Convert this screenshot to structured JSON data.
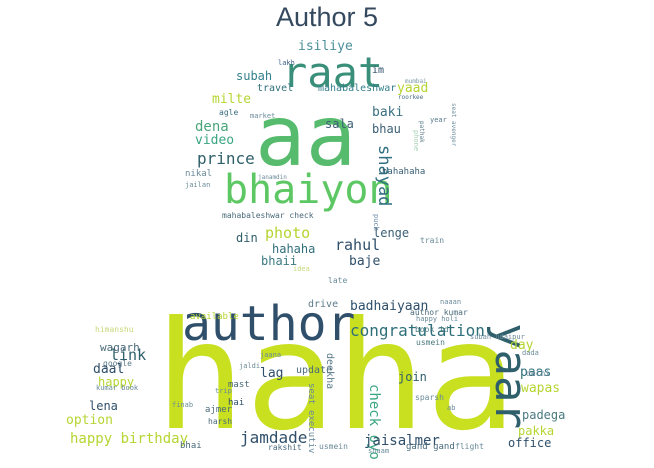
{
  "title": "Author 5",
  "clouds": [
    {
      "name": "upper-cloud",
      "words": [
        {
          "text": "aa",
          "color": "#56bb6c"
        },
        {
          "text": "raat",
          "color": "#3a8f7a"
        },
        {
          "text": "bhaiyon",
          "color": "#5dc863"
        },
        {
          "text": "isiliye",
          "color": "#4a8f9a"
        },
        {
          "text": "lakh",
          "color": "#3c5f8a"
        },
        {
          "text": "im",
          "color": "#2f4f6a"
        },
        {
          "text": "mumbai",
          "color": "#7a9aa8"
        },
        {
          "text": "subah",
          "color": "#35808d"
        },
        {
          "text": "travel",
          "color": "#2f6f7a"
        },
        {
          "text": "mahabaleshwar",
          "color": "#35808d"
        },
        {
          "text": "yaad",
          "color": "#b5d532"
        },
        {
          "text": "roorkee",
          "color": "#4a6f8a"
        },
        {
          "text": "milte",
          "color": "#b5d532"
        },
        {
          "text": "baki",
          "color": "#3a6f80"
        },
        {
          "text": "agle",
          "color": "#3a6f80"
        },
        {
          "text": "market",
          "color": "#6a8a9a"
        },
        {
          "text": "year",
          "color": "#5a7a8a"
        },
        {
          "text": "sala",
          "color": "#3a5f75"
        },
        {
          "text": "bhau",
          "color": "#3a5f75"
        },
        {
          "text": "dena",
          "color": "#4aa57a"
        },
        {
          "text": "video",
          "color": "#3aa580"
        },
        {
          "text": "pathak",
          "color": "#5a7a8a"
        },
        {
          "text": "seat avenger",
          "color": "#6a8a9a"
        },
        {
          "text": "prince",
          "color": "#2f5f6a"
        },
        {
          "text": "shayad",
          "color": "#2f6f80"
        },
        {
          "text": "phone",
          "color": "#a8cfb8"
        },
        {
          "text": "nikal",
          "color": "#6a8a9a"
        },
        {
          "text": "janamdin",
          "color": "#6a8a9a"
        },
        {
          "text": "hahahaha",
          "color": "#3a5f75"
        },
        {
          "text": "jailan",
          "color": "#6a8a9a"
        },
        {
          "text": "mahabaleshwar check",
          "color": "#4a6a7a"
        },
        {
          "text": "puch",
          "color": "#6a8aaa"
        },
        {
          "text": "lenge",
          "color": "#3a5f75"
        },
        {
          "text": "photo",
          "color": "#b5d532"
        },
        {
          "text": "din",
          "color": "#2f5f6a"
        },
        {
          "text": "hahaha",
          "color": "#2f6f7a"
        },
        {
          "text": "rahul",
          "color": "#2f4f6a"
        },
        {
          "text": "train",
          "color": "#6a8a9a"
        },
        {
          "text": "bhaii",
          "color": "#3a7a80"
        },
        {
          "text": "baje",
          "color": "#2f4f6a"
        },
        {
          "text": "idea",
          "color": "#c7da7a"
        },
        {
          "text": "late",
          "color": "#6a8a9a"
        }
      ]
    },
    {
      "name": "lower-cloud",
      "words": [
        {
          "text": "haha",
          "color": "#c8e020"
        },
        {
          "text": "author",
          "color": "#2f4f6a"
        },
        {
          "text": "yaar",
          "color": "#2f5f6a"
        },
        {
          "text": "drive",
          "color": "#5a7a8a"
        },
        {
          "text": "naaan",
          "color": "#6a8a9a"
        },
        {
          "text": "author kumar",
          "color": "#4a6a7a"
        },
        {
          "text": "happy holi",
          "color": "#6a8a9a"
        },
        {
          "text": "badhaiyaan",
          "color": "#2f4f6a"
        },
        {
          "text": "congratulation",
          "color": "#2f6f7a"
        },
        {
          "text": "wagarh",
          "color": "#4a6a7a"
        },
        {
          "text": "himanshu",
          "color": "#c8d87a"
        },
        {
          "text": "available",
          "color": "#b5d532"
        },
        {
          "text": "book id",
          "color": "#4a7a80"
        },
        {
          "text": "usmein",
          "color": "#4a7a80"
        },
        {
          "text": "subah udaipur",
          "color": "#6a8a9a"
        },
        {
          "text": "link",
          "color": "#2f5f6a"
        },
        {
          "text": "google",
          "color": "#5a7a8a"
        },
        {
          "text": "day",
          "color": "#b5d532"
        },
        {
          "text": "daal",
          "color": "#2f4f6a"
        },
        {
          "text": "paas",
          "color": "#2f6f7a"
        },
        {
          "text": "jaana",
          "color": "#6a8a9a"
        },
        {
          "text": "happy",
          "color": "#b5d532"
        },
        {
          "text": "kumar book",
          "color": "#6a8a9a"
        },
        {
          "text": "lag",
          "color": "#2f4f6a"
        },
        {
          "text": "update",
          "color": "#4a6a7a"
        },
        {
          "text": "deekha",
          "color": "#5a7a8a"
        },
        {
          "text": "dada",
          "color": "#6a8a9a"
        },
        {
          "text": "delhi",
          "color": "#6a8a9a"
        },
        {
          "text": "jaldi",
          "color": "#6a8a9a"
        },
        {
          "text": "mast",
          "color": "#4a6a7a"
        },
        {
          "text": "join",
          "color": "#2f5f6a"
        },
        {
          "text": "wapas",
          "color": "#b5d532"
        },
        {
          "text": "lena",
          "color": "#2f4f6a"
        },
        {
          "text": "trip",
          "color": "#6a8a9a"
        },
        {
          "text": "option",
          "color": "#b5d532"
        },
        {
          "text": "hai",
          "color": "#2f4f6a"
        },
        {
          "text": "seat executiv",
          "color": "#6a8a9a"
        },
        {
          "text": "sparsh",
          "color": "#6a8a9a"
        },
        {
          "text": "ab",
          "color": "#6a8a9a"
        },
        {
          "text": "finab",
          "color": "#6a8a9a"
        },
        {
          "text": "ajmer",
          "color": "#4a6a7a"
        },
        {
          "text": "harsh",
          "color": "#4a6a7a"
        },
        {
          "text": "padega",
          "color": "#4a7a80"
        },
        {
          "text": "check oyo",
          "color": "#3aa580"
        },
        {
          "text": "happy birthday",
          "color": "#b5d532"
        },
        {
          "text": "jamdade",
          "color": "#2f4f6a"
        },
        {
          "text": "jaisalmer",
          "color": "#2f4f6a"
        },
        {
          "text": "pakka",
          "color": "#b5d532"
        },
        {
          "text": "bhai",
          "color": "#4a6a7a"
        },
        {
          "text": "rakshit",
          "color": "#4a6a7a"
        },
        {
          "text": "usmein",
          "color": "#6a8a9a"
        },
        {
          "text": "shaam",
          "color": "#6a8a9a"
        },
        {
          "text": "gand gand",
          "color": "#4a6a7a"
        },
        {
          "text": "flight",
          "color": "#6a8a9a"
        },
        {
          "text": "office",
          "color": "#2f4f6a"
        }
      ]
    }
  ]
}
